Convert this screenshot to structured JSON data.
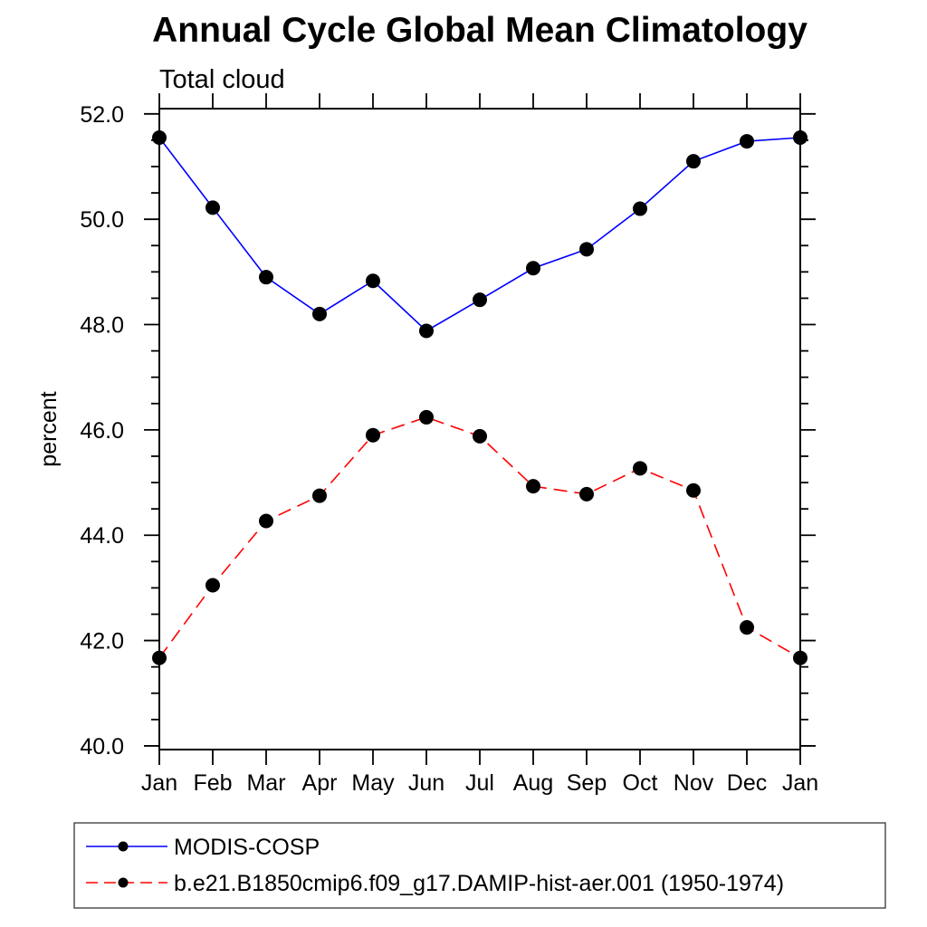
{
  "chart_data": {
    "type": "line",
    "title": "Annual Cycle Global Mean Climatology",
    "left_label": "Total cloud",
    "ylabel": "percent",
    "xlabel": "",
    "categories": [
      "Jan",
      "Feb",
      "Mar",
      "Apr",
      "May",
      "Jun",
      "Jul",
      "Aug",
      "Sep",
      "Oct",
      "Nov",
      "Dec",
      "Jan"
    ],
    "ylim": [
      39.93,
      52.1
    ],
    "ytick_major_values": [
      40,
      42,
      44,
      46,
      48,
      50,
      52
    ],
    "ytick_major_labels": [
      "40.0",
      "42.0",
      "44.0",
      "46.0",
      "48.0",
      "50.0",
      "52.0"
    ],
    "ytick_minor_step": 0.5,
    "grid": false,
    "legend_position": "bottom",
    "axis_color": "#000000",
    "marker_color": "#000000",
    "series": [
      {
        "name": "MODIS-COSP",
        "color": "#0000ff",
        "line_style": "solid",
        "marker": "circle",
        "values": [
          51.55,
          50.22,
          48.9,
          48.2,
          48.83,
          47.88,
          48.47,
          49.07,
          49.43,
          50.2,
          51.1,
          51.48,
          51.55
        ]
      },
      {
        "name": "b.e21.B1850cmip6.f09_g17.DAMIP-hist-aer.001 (1950-1974)",
        "color": "#ff0000",
        "line_style": "dashed",
        "marker": "circle",
        "values": [
          41.67,
          43.05,
          44.27,
          44.75,
          45.9,
          46.24,
          45.88,
          44.93,
          44.78,
          45.27,
          44.85,
          42.25,
          41.67
        ]
      }
    ]
  }
}
